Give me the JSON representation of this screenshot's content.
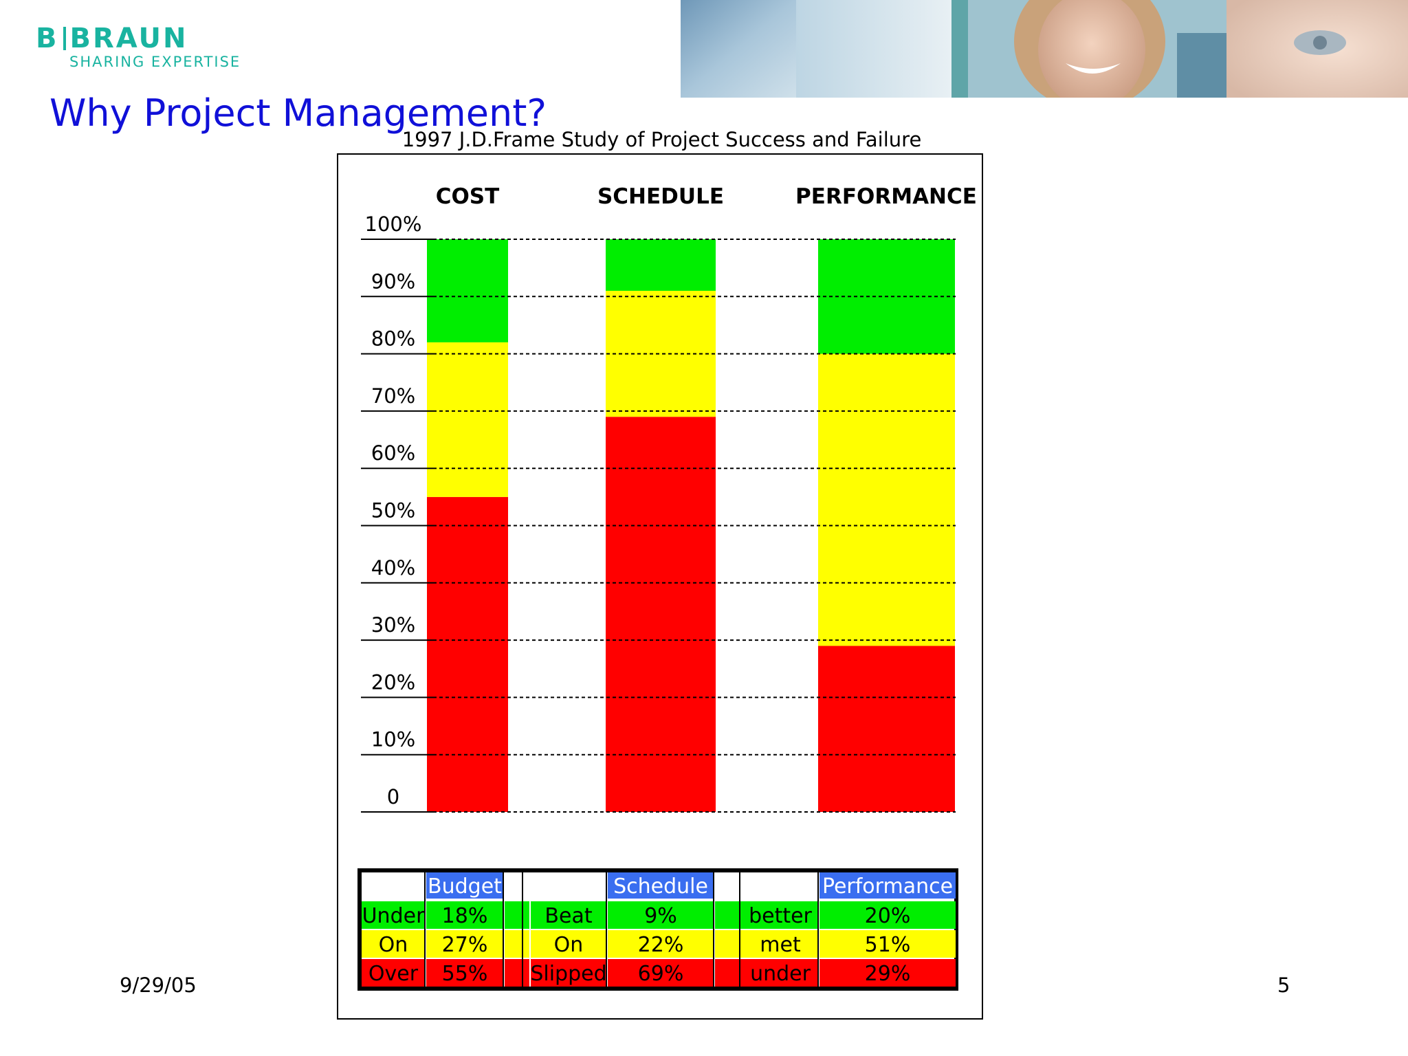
{
  "logo": {
    "brand_left": "B",
    "brand_right": "BRAUN",
    "tagline": "SHARING EXPERTISE"
  },
  "slide": {
    "title": "Why Project Management?",
    "date": "9/29/05",
    "page_number": "5"
  },
  "colors": {
    "green": "#00ee00",
    "yellow": "#ffff00",
    "red": "#ff0000",
    "header_blue": "#3a6ef0",
    "title_blue": "#1010d8",
    "brand_teal": "#19b3a0"
  },
  "chart_data": {
    "type": "bar",
    "stacked": true,
    "title": "1997 J.D.Frame Study of Project Success and Failure",
    "categories": [
      "COST",
      "SCHEDULE",
      "PERFORMANCE"
    ],
    "yticks": [
      "100%",
      "90%",
      "80%",
      "70%",
      "60%",
      "50%",
      "40%",
      "30%",
      "20%",
      "10%",
      "0"
    ],
    "ylim": [
      0,
      100
    ],
    "grid": true,
    "series": [
      {
        "color": "#ff0000",
        "values": [
          55,
          69,
          29
        ]
      },
      {
        "color": "#ffff00",
        "values": [
          27,
          22,
          51
        ]
      },
      {
        "color": "#00ee00",
        "values": [
          18,
          9,
          20
        ]
      }
    ],
    "table": {
      "groups": [
        {
          "header": "Budget",
          "rows": [
            {
              "label": "Under",
              "value": "18%"
            },
            {
              "label": "On",
              "value": "27%"
            },
            {
              "label": "Over",
              "value": "55%"
            }
          ]
        },
        {
          "header": "Schedule",
          "rows": [
            {
              "label": "Beat",
              "value": "9%"
            },
            {
              "label": "On",
              "value": "22%"
            },
            {
              "label": "Slipped",
              "value": "69%"
            }
          ]
        },
        {
          "header": "Performance",
          "rows": [
            {
              "label": "better",
              "value": "20%"
            },
            {
              "label": "met",
              "value": "51%"
            },
            {
              "label": "under",
              "value": "29%"
            }
          ]
        }
      ],
      "row_colors": [
        "#00ee00",
        "#ffff00",
        "#ff0000"
      ]
    }
  }
}
